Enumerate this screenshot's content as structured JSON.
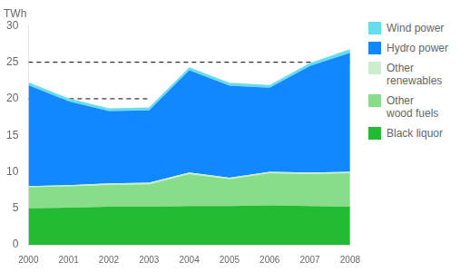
{
  "chart_data": {
    "type": "area",
    "stacked": true,
    "ylabel": "TWh",
    "x": [
      2000,
      2001,
      2002,
      2003,
      2004,
      2005,
      2006,
      2007,
      2008
    ],
    "series": [
      {
        "name": "Black liquor",
        "color": "#22bb33",
        "values": [
          5.0,
          5.1,
          5.2,
          5.2,
          5.3,
          5.3,
          5.4,
          5.3,
          5.2
        ]
      },
      {
        "name": "Other\nwood fuels",
        "color": "#88dd88",
        "values": [
          2.9,
          2.9,
          3.0,
          3.1,
          4.4,
          3.7,
          4.4,
          4.4,
          4.6
        ]
      },
      {
        "name": "Other\nrenewables",
        "color": "#cceecc",
        "values": [
          0.15,
          0.15,
          0.2,
          0.2,
          0.2,
          0.2,
          0.2,
          0.2,
          0.2
        ]
      },
      {
        "name": "Hydro power",
        "color": "#1188ff",
        "values": [
          13.8,
          11.5,
          9.9,
          9.9,
          14.0,
          12.6,
          11.5,
          14.6,
          16.3
        ]
      },
      {
        "name": "Wind power",
        "color": "#66ddee",
        "values": [
          0.4,
          0.4,
          0.4,
          0.4,
          0.4,
          0.4,
          0.4,
          0.4,
          0.5
        ]
      }
    ],
    "hlines": [
      {
        "y": 25,
        "xmin": 2000,
        "xmax": 2008,
        "color": "#000000",
        "line_style": "dashed"
      },
      {
        "y": 20,
        "xmin": 2000,
        "xmax": 2003,
        "color": "#000000",
        "line_style": "dashed"
      }
    ],
    "xlim": [
      2000,
      2008
    ],
    "xticks": [
      2000,
      2001,
      2002,
      2003,
      2004,
      2005,
      2006,
      2007,
      2008
    ],
    "ylim": [
      0,
      30
    ],
    "yticks": [
      0,
      5,
      10,
      15,
      20,
      25,
      30
    ],
    "grid": false,
    "legend": "right"
  }
}
